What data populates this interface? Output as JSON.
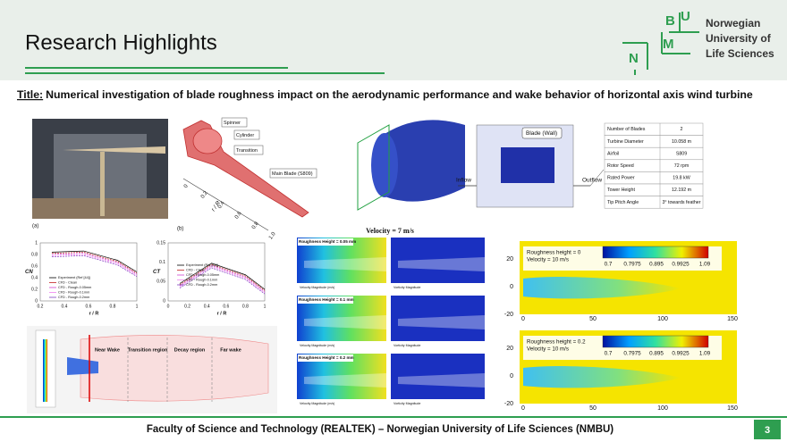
{
  "header": {
    "title": "Research Highlights",
    "logo_letters": [
      "N",
      "M",
      "B",
      "U"
    ],
    "university": [
      "Norwegian",
      "University of",
      "Life Sciences"
    ]
  },
  "paper": {
    "label": "Title:",
    "text": "Numerical investigation of blade roughness impact on the aerodynamic performance and wake behavior of horizontal axis wind turbine"
  },
  "geometry": {
    "photo_label": "(a)",
    "diagram_label": "(b)",
    "parts": [
      "Spinner",
      "Cylinder",
      "Transition",
      "Main Blade (S809)"
    ],
    "axis_label": "r / R",
    "axis_ticks": [
      "0",
      "0.2",
      "0.4",
      "0.6",
      "0.8",
      "1.0"
    ]
  },
  "charts": [
    {
      "ylabel": "CN",
      "xlabel": "r / R",
      "yticks": [
        "1",
        "0.8",
        "0.6",
        "0.4",
        "0.2",
        "0"
      ],
      "xticks": [
        "0.2",
        "0.4",
        "0.6",
        "0.8",
        "1"
      ]
    },
    {
      "ylabel": "CT",
      "xlabel": "r / R",
      "yticks": [
        "0.15",
        "0.1",
        "0.05",
        "0"
      ],
      "xticks": [
        "0",
        "0.2",
        "0.4",
        "0.6",
        "0.8",
        "1"
      ]
    }
  ],
  "legend": [
    "Experiment (Ref [44])",
    "CFD - Clean",
    "CFD - Rough-0.05mm",
    "CFD - Rough-0.1mm",
    "CFD - Rough-0.2mm"
  ],
  "wake": {
    "regions": [
      "Near Wake",
      "Transition region",
      "Decay region",
      "Far wake"
    ]
  },
  "domain": {
    "blade": "Blade (Wall)",
    "inflow": "Inflow",
    "outflow": "Outflow"
  },
  "table": {
    "rows": [
      [
        "Number of Blades",
        "2"
      ],
      [
        "Turbine Diameter",
        "10.058 m"
      ],
      [
        "Airfoil",
        "S809"
      ],
      [
        "Rotor Speed",
        "72 rpm"
      ],
      [
        "Rated Power",
        "19.8 kW"
      ],
      [
        "Tower Height",
        "12.192 m"
      ],
      [
        "Tip Pitch Angle",
        "3° towards feather"
      ]
    ]
  },
  "panels": {
    "title": "Velocity = 7 m/s",
    "roughness": [
      "Roughness Height = 0.05 mm",
      "Roughness Height = 0.1 mm",
      "Roughness Height = 0.2 mm"
    ],
    "velocity_bar": "Velocity Magnitude (m/s)",
    "vorticity_bar": "Vorticity Magnitude"
  },
  "contours": {
    "plots": [
      {
        "roughness": "Roughness height = 0",
        "velocity": "Velocity = 10 m/s"
      },
      {
        "roughness": "Roughness height = 0.2",
        "velocity": "Velocity = 10 m/s"
      }
    ],
    "colorbar": [
      "0.7",
      "0.7975",
      "0.895",
      "0.9925",
      "1.09"
    ],
    "yticks": [
      "20",
      "0",
      "-20"
    ],
    "xticks": [
      "0",
      "50",
      "100",
      "150"
    ]
  },
  "footer": {
    "text": "Faculty of Science and Technology (REALTEK) – Norwegian University of Life Sciences (NMBU)",
    "page": "3"
  }
}
